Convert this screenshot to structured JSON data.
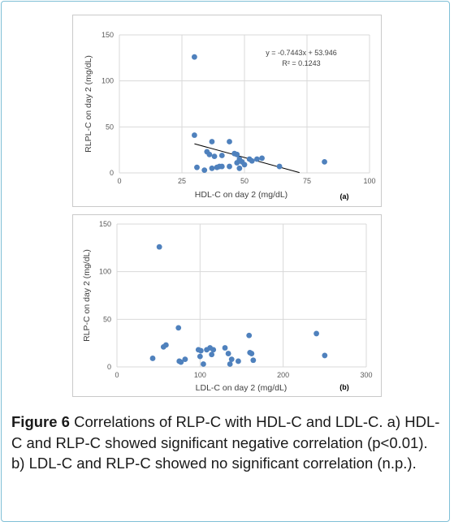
{
  "caption": {
    "label": "Figure 6",
    "text": " Correlations of RLP-C with HDL-C and LDL-C. a) HDL-C and RLP-C showed significant negative correlation (p<0.01). b) LDL-C and RLP-C showed no significant correlation (n.p.)."
  },
  "chart_data": [
    {
      "type": "scatter",
      "panel_label": "(a)",
      "xlabel": "HDL-C on day 2 (mg/dL)",
      "ylabel": "RLPL-C on day 2 (mg/dL)",
      "xlim": [
        0,
        100
      ],
      "ylim": [
        0,
        150
      ],
      "xticks": [
        0,
        25,
        50,
        75,
        100
      ],
      "yticks": [
        0,
        50,
        100,
        150
      ],
      "grid": true,
      "marker_color": "#4f81bd",
      "trendline": {
        "slope": -0.7443,
        "intercept": 53.946,
        "x_range": [
          30,
          72
        ],
        "equation": "y = -0.7443x + 53.946",
        "r2": "R² = 0.1243"
      },
      "points": [
        {
          "x": 30,
          "y": 126
        },
        {
          "x": 30,
          "y": 41
        },
        {
          "x": 31,
          "y": 6
        },
        {
          "x": 34,
          "y": 3
        },
        {
          "x": 35,
          "y": 23
        },
        {
          "x": 36,
          "y": 20
        },
        {
          "x": 37,
          "y": 34
        },
        {
          "x": 37,
          "y": 5
        },
        {
          "x": 38,
          "y": 18
        },
        {
          "x": 39,
          "y": 6
        },
        {
          "x": 40,
          "y": 7
        },
        {
          "x": 41,
          "y": 19
        },
        {
          "x": 41,
          "y": 7
        },
        {
          "x": 44,
          "y": 34
        },
        {
          "x": 44,
          "y": 7
        },
        {
          "x": 46,
          "y": 21
        },
        {
          "x": 47,
          "y": 20
        },
        {
          "x": 47,
          "y": 11
        },
        {
          "x": 48,
          "y": 15
        },
        {
          "x": 48,
          "y": 5
        },
        {
          "x": 49,
          "y": 12
        },
        {
          "x": 50,
          "y": 9
        },
        {
          "x": 52,
          "y": 15
        },
        {
          "x": 53,
          "y": 13
        },
        {
          "x": 55,
          "y": 15
        },
        {
          "x": 57,
          "y": 16
        },
        {
          "x": 64,
          "y": 7
        },
        {
          "x": 82,
          "y": 12
        }
      ]
    },
    {
      "type": "scatter",
      "panel_label": "(b)",
      "xlabel": "LDL-C on day 2 (mg/dL)",
      "ylabel": "RLP-C on day 2 (mg/dL)",
      "xlim": [
        0,
        300
      ],
      "ylim": [
        0,
        150
      ],
      "xticks": [
        0,
        100,
        200,
        300
      ],
      "yticks": [
        0,
        50,
        100,
        150
      ],
      "grid": true,
      "marker_color": "#4f81bd",
      "points": [
        {
          "x": 43,
          "y": 9
        },
        {
          "x": 51,
          "y": 126
        },
        {
          "x": 56,
          "y": 21
        },
        {
          "x": 59,
          "y": 23
        },
        {
          "x": 74,
          "y": 41
        },
        {
          "x": 75,
          "y": 6
        },
        {
          "x": 77,
          "y": 5
        },
        {
          "x": 82,
          "y": 8
        },
        {
          "x": 98,
          "y": 18
        },
        {
          "x": 100,
          "y": 11
        },
        {
          "x": 101,
          "y": 17
        },
        {
          "x": 104,
          "y": 3
        },
        {
          "x": 108,
          "y": 18
        },
        {
          "x": 112,
          "y": 20
        },
        {
          "x": 114,
          "y": 13
        },
        {
          "x": 116,
          "y": 18
        },
        {
          "x": 130,
          "y": 20
        },
        {
          "x": 134,
          "y": 14
        },
        {
          "x": 136,
          "y": 3
        },
        {
          "x": 138,
          "y": 8
        },
        {
          "x": 146,
          "y": 6
        },
        {
          "x": 159,
          "y": 33
        },
        {
          "x": 160,
          "y": 15
        },
        {
          "x": 162,
          "y": 14
        },
        {
          "x": 164,
          "y": 7
        },
        {
          "x": 240,
          "y": 35
        },
        {
          "x": 250,
          "y": 12
        }
      ]
    }
  ]
}
